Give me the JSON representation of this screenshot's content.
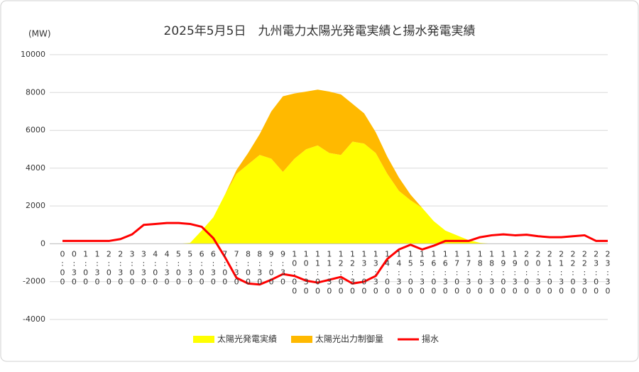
{
  "chart_data": {
    "type": "area",
    "title": "2025年5月5日　九州電力太陽光発電実績と揚水発電実績",
    "y_label": "(MW)",
    "categories": [
      "0:00",
      "0:30",
      "1:00",
      "1:30",
      "2:00",
      "2:30",
      "3:00",
      "3:30",
      "4:00",
      "4:30",
      "5:00",
      "5:30",
      "6:00",
      "6:30",
      "7:00",
      "7:30",
      "8:00",
      "8:30",
      "9:00",
      "9:30",
      "10:00",
      "10:30",
      "11:00",
      "11:30",
      "12:00",
      "12:30",
      "13:00",
      "13:30",
      "14:00",
      "14:30",
      "15:00",
      "15:30",
      "16:00",
      "16:30",
      "17:00",
      "17:30",
      "18:00",
      "18:30",
      "19:00",
      "19:30",
      "20:00",
      "20:30",
      "21:00",
      "21:30",
      "22:00",
      "22:30",
      "23:00",
      "23:30"
    ],
    "series": [
      {
        "name": "太陽光発電実績",
        "color": "#ffff00",
        "kind": "area",
        "values": [
          0,
          0,
          0,
          0,
          0,
          0,
          0,
          0,
          0,
          0,
          0,
          50,
          700,
          1400,
          2600,
          3700,
          4200,
          4700,
          4500,
          3800,
          4500,
          5000,
          5200,
          4800,
          4700,
          5400,
          5300,
          4800,
          3700,
          2800,
          2300,
          1900,
          1200,
          700,
          450,
          200,
          50,
          0,
          0,
          0,
          0,
          0,
          0,
          0,
          0,
          0,
          0,
          0
        ]
      },
      {
        "name": "太陽光出力制御量",
        "color": "#ffb900",
        "kind": "area",
        "values": [
          0,
          0,
          0,
          0,
          0,
          0,
          0,
          0,
          0,
          0,
          0,
          0,
          0,
          0,
          0,
          200,
          600,
          1100,
          2500,
          4000,
          3450,
          3050,
          2950,
          3250,
          3200,
          2000,
          1600,
          1100,
          900,
          700,
          300,
          0,
          0,
          0,
          0,
          0,
          0,
          0,
          0,
          0,
          0,
          0,
          0,
          0,
          0,
          0,
          0,
          0
        ]
      },
      {
        "name": "揚水",
        "color": "#ff0000",
        "kind": "line",
        "values": [
          150,
          150,
          150,
          150,
          150,
          250,
          500,
          1000,
          1050,
          1100,
          1100,
          1050,
          900,
          300,
          -700,
          -1800,
          -2100,
          -2150,
          -1900,
          -1600,
          -1700,
          -1950,
          -2050,
          -1900,
          -1750,
          -2100,
          -2000,
          -1700,
          -800,
          -300,
          -50,
          -300,
          -100,
          150,
          150,
          150,
          350,
          450,
          500,
          450,
          480,
          400,
          350,
          350,
          400,
          450,
          150,
          150
        ]
      }
    ],
    "ylim": [
      -4000,
      10000
    ],
    "yticks": [
      -4000,
      -2000,
      0,
      2000,
      4000,
      6000,
      8000,
      10000
    ],
    "grid": true,
    "legend": "bottom"
  }
}
